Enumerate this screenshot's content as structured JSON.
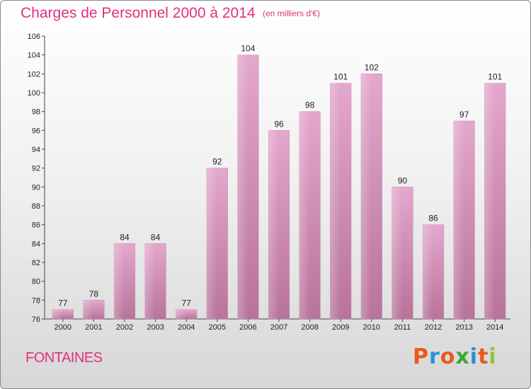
{
  "header": {
    "title": "Charges de Personnel 2000 à 2014",
    "subtitle": "(en milliers d'€)"
  },
  "footer": {
    "commune": "FONTAINES",
    "logo": "Proxiti"
  },
  "colors": {
    "title": "#e1307c",
    "bar_top": "#e4a7cd",
    "bar_bottom": "#b8739a",
    "logo": [
      "#e85a1e",
      "#2f8fd6",
      "#e85a1e",
      "#3aaa35",
      "#2f8fd6",
      "#e85a1e",
      "#8dc63f"
    ]
  },
  "chart_data": {
    "type": "bar",
    "title": "Charges de Personnel 2000 à 2014",
    "subtitle": "(en milliers d'€)",
    "categories": [
      "2000",
      "2001",
      "2002",
      "2003",
      "2004",
      "2005",
      "2006",
      "2007",
      "2008",
      "2009",
      "2010",
      "2011",
      "2012",
      "2013",
      "2014"
    ],
    "values": [
      77,
      78,
      84,
      84,
      77,
      92,
      104,
      96,
      98,
      101,
      102,
      90,
      86,
      97,
      101
    ],
    "ylim": [
      76,
      106
    ],
    "yticks": [
      76,
      78,
      80,
      82,
      84,
      86,
      88,
      90,
      92,
      94,
      96,
      98,
      100,
      102,
      104,
      106
    ],
    "grid": false,
    "xlabel": "",
    "ylabel": ""
  }
}
